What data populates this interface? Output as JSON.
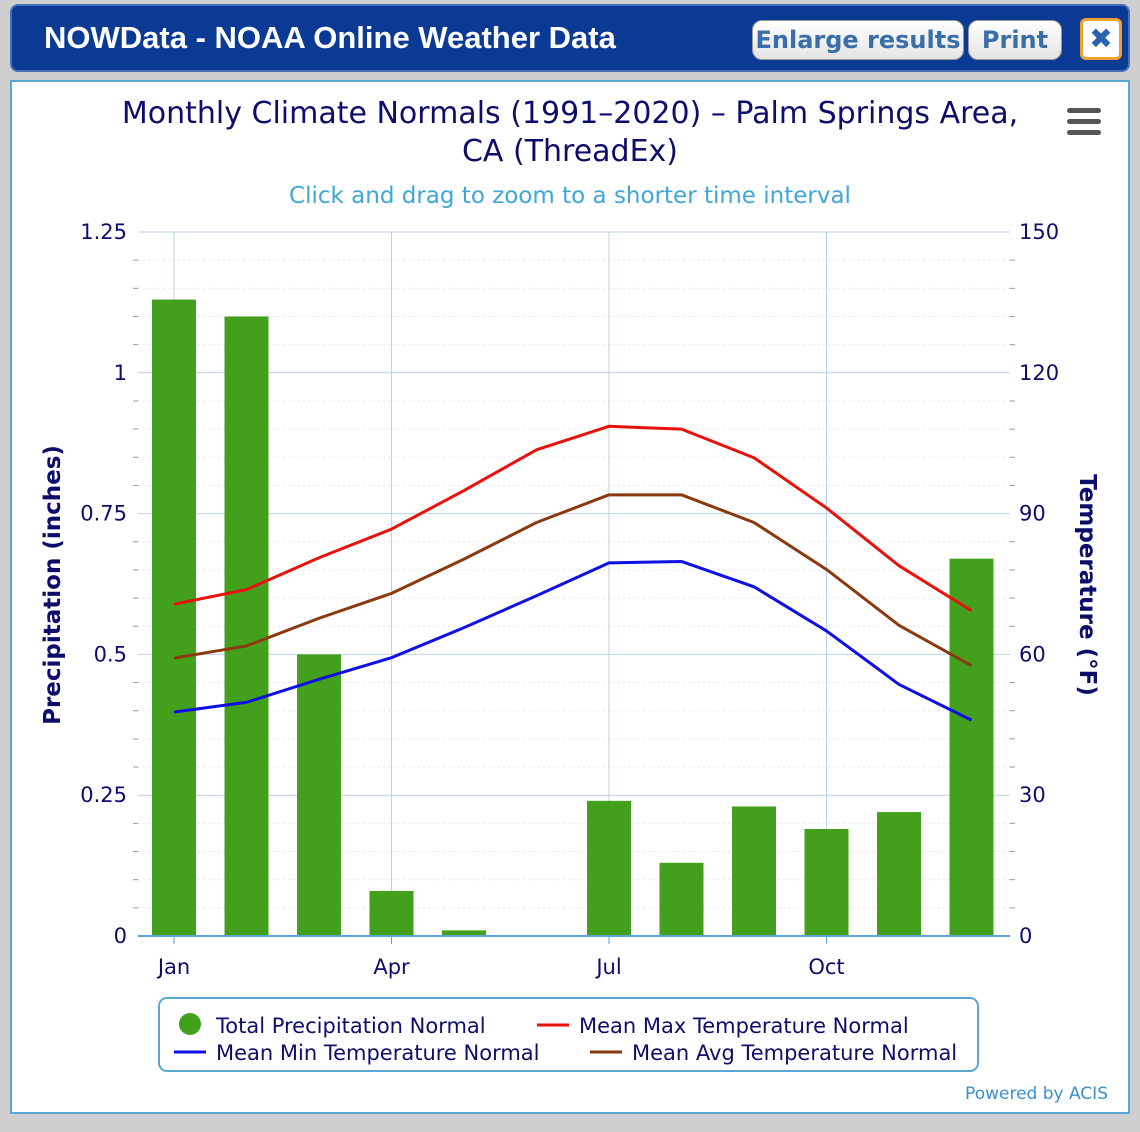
{
  "window": {
    "title": "NOWData - NOAA Online Weather Data",
    "enlarge_label": "Enlarge results",
    "print_label": "Print",
    "close_glyph": "✖",
    "powered_by": "Powered by ACIS"
  },
  "chart_data": {
    "type": "bar+line",
    "title_line1": "Monthly Climate Normals (1991–2020) – Palm Springs Area,",
    "title_line2": "CA (ThreadEx)",
    "subtitle": "Click and drag to zoom to a shorter time interval",
    "ylabel_left": "Precipitation (inches)",
    "ylabel_right": "Temperature (°F)",
    "ylim_left": [
      0,
      1.25
    ],
    "ylim_right": [
      0,
      150
    ],
    "left_ticks": [
      "0",
      "0.25",
      "0.5",
      "0.75",
      "1",
      "1.25"
    ],
    "right_ticks": [
      "0",
      "30",
      "60",
      "90",
      "120",
      "150"
    ],
    "x_tick_labels": [
      {
        "month_index": 0,
        "label": "Jan"
      },
      {
        "month_index": 3,
        "label": "Apr"
      },
      {
        "month_index": 6,
        "label": "Jul"
      },
      {
        "month_index": 9,
        "label": "Oct"
      }
    ],
    "months": 12,
    "precipitation": {
      "name": "Total Precipitation Normal",
      "color": "#43a01c",
      "values": [
        1.13,
        1.1,
        0.5,
        0.08,
        0.01,
        0.0,
        0.24,
        0.13,
        0.23,
        0.19,
        0.22,
        0.67
      ]
    },
    "series": [
      {
        "name": "Mean Max Temperature Normal",
        "color": "#e8120c",
        "values": [
          70.7,
          73.8,
          80.6,
          86.7,
          94.9,
          103.6,
          108.6,
          108.0,
          101.9,
          91.2,
          78.9,
          69.3
        ]
      },
      {
        "name": "Mean Min Temperature Normal",
        "color": "#1010e6",
        "values": [
          47.7,
          49.8,
          54.7,
          59.3,
          65.7,
          72.5,
          79.5,
          79.8,
          74.4,
          65.0,
          53.6,
          46.0
        ]
      },
      {
        "name": "Mean Avg Temperature Normal",
        "color": "#8b3a10",
        "values": [
          59.2,
          61.8,
          67.7,
          73.0,
          80.3,
          88.1,
          94.0,
          94.0,
          88.1,
          78.1,
          66.2,
          57.6
        ]
      }
    ],
    "legend_position": "bottom-center",
    "grid": true
  }
}
